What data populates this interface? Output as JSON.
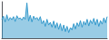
{
  "chart_data": {
    "type": "area",
    "values": [
      9.8,
      10.5,
      9.2,
      10.8,
      9.5,
      10.2,
      9.7,
      10.4,
      9.3,
      10.6,
      9.9,
      10.1,
      9.6,
      10.3,
      9.8,
      13.5,
      9.4,
      10.7,
      9.2,
      10.5,
      9.8,
      10.2,
      9.5,
      10.4,
      8.8,
      9.5,
      8.2,
      9.8,
      8.5,
      9.1,
      8.0,
      9.4,
      7.8,
      9.0,
      7.5,
      8.8,
      7.2,
      8.5,
      7.0,
      8.2,
      6.8,
      7.9,
      7.4,
      8.8,
      7.6,
      9.0,
      8.2,
      9.5,
      8.0,
      9.3,
      8.5,
      9.8,
      8.3,
      9.6,
      8.8,
      10.0,
      8.5,
      9.8,
      8.2,
      9.5,
      8.7,
      10.1,
      9.0,
      10.4
    ],
    "color": "#3399cc",
    "xlim": [
      0,
      63
    ],
    "ylim": [
      5.5,
      13.77
    ],
    "grid": false,
    "tick_labels": false
  }
}
